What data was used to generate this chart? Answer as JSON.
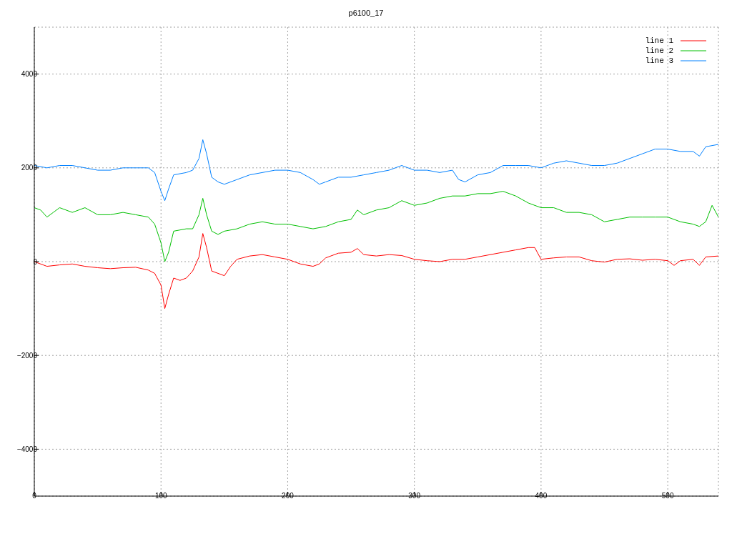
{
  "chart_data": {
    "type": "line",
    "title": "p6100_17",
    "xlim": [
      0,
      540
    ],
    "xticks": [
      0,
      100,
      200,
      300,
      400,
      500
    ],
    "ylim": [
      -5000,
      5000
    ],
    "yticks": [
      -4000,
      -2000,
      0,
      2000,
      4000
    ],
    "grid": true,
    "legend": "top right",
    "marker": "none",
    "line_style": "solid",
    "series": [
      {
        "name": "line 1",
        "color": "#ff0000",
        "x": [
          0,
          10,
          20,
          30,
          40,
          50,
          60,
          70,
          80,
          90,
          95,
          100,
          103,
          106,
          110,
          115,
          120,
          125,
          130,
          133,
          136,
          140,
          145,
          150,
          155,
          160,
          170,
          180,
          190,
          200,
          210,
          220,
          225,
          230,
          240,
          250,
          255,
          260,
          270,
          280,
          290,
          300,
          310,
          320,
          330,
          340,
          350,
          360,
          370,
          380,
          390,
          395,
          400,
          410,
          420,
          430,
          440,
          450,
          460,
          470,
          480,
          490,
          500,
          505,
          510,
          520,
          525,
          530,
          540
        ],
        "values": [
          0,
          -100,
          -70,
          -50,
          -100,
          -130,
          -150,
          -130,
          -120,
          -180,
          -250,
          -500,
          -1000,
          -700,
          -350,
          -400,
          -350,
          -200,
          100,
          600,
          300,
          -200,
          -250,
          -300,
          -100,
          50,
          120,
          150,
          100,
          50,
          -50,
          -100,
          -50,
          80,
          180,
          200,
          280,
          150,
          120,
          150,
          130,
          50,
          20,
          0,
          50,
          50,
          100,
          150,
          200,
          250,
          300,
          300,
          50,
          80,
          100,
          100,
          20,
          -10,
          50,
          60,
          30,
          50,
          20,
          -80,
          20,
          50,
          -80,
          100,
          120
        ]
      },
      {
        "name": "line 2",
        "color": "#00c000",
        "x": [
          0,
          5,
          10,
          15,
          20,
          30,
          40,
          50,
          60,
          70,
          80,
          90,
          95,
          100,
          103,
          106,
          110,
          120,
          125,
          130,
          133,
          136,
          140,
          145,
          150,
          160,
          170,
          180,
          190,
          200,
          210,
          220,
          230,
          240,
          250,
          255,
          260,
          270,
          280,
          290,
          300,
          310,
          320,
          330,
          340,
          350,
          360,
          370,
          380,
          390,
          400,
          410,
          420,
          430,
          440,
          450,
          460,
          470,
          480,
          490,
          500,
          510,
          520,
          525,
          530,
          535,
          540
        ],
        "values": [
          1150,
          1100,
          950,
          1050,
          1150,
          1050,
          1150,
          1000,
          1000,
          1050,
          1000,
          950,
          800,
          400,
          0,
          200,
          650,
          700,
          700,
          1000,
          1350,
          1000,
          650,
          580,
          650,
          700,
          800,
          850,
          800,
          800,
          750,
          700,
          750,
          850,
          900,
          1100,
          1000,
          1100,
          1150,
          1300,
          1200,
          1250,
          1350,
          1400,
          1400,
          1450,
          1450,
          1500,
          1400,
          1250,
          1150,
          1150,
          1050,
          1050,
          1000,
          850,
          900,
          950,
          950,
          950,
          950,
          850,
          800,
          750,
          850,
          1200,
          950
        ]
      },
      {
        "name": "line 3",
        "color": "#0080ff",
        "x": [
          0,
          10,
          20,
          30,
          40,
          50,
          60,
          70,
          80,
          90,
          95,
          100,
          103,
          106,
          110,
          120,
          125,
          130,
          133,
          136,
          140,
          145,
          150,
          160,
          170,
          180,
          190,
          200,
          210,
          220,
          225,
          230,
          240,
          250,
          260,
          270,
          280,
          290,
          300,
          310,
          320,
          330,
          335,
          340,
          350,
          360,
          370,
          380,
          390,
          400,
          410,
          420,
          430,
          440,
          450,
          460,
          470,
          480,
          490,
          500,
          510,
          520,
          525,
          530,
          540
        ],
        "values": [
          2050,
          2000,
          2050,
          2050,
          2000,
          1950,
          1950,
          2000,
          2000,
          2000,
          1900,
          1500,
          1300,
          1550,
          1850,
          1900,
          1950,
          2200,
          2600,
          2300,
          1800,
          1700,
          1650,
          1750,
          1850,
          1900,
          1950,
          1950,
          1900,
          1750,
          1650,
          1700,
          1800,
          1800,
          1850,
          1900,
          1950,
          2050,
          1950,
          1950,
          1900,
          1950,
          1750,
          1700,
          1850,
          1900,
          2050,
          2050,
          2050,
          2000,
          2100,
          2150,
          2100,
          2050,
          2050,
          2100,
          2200,
          2300,
          2400,
          2400,
          2350,
          2350,
          2250,
          2450,
          2500
        ]
      }
    ]
  }
}
